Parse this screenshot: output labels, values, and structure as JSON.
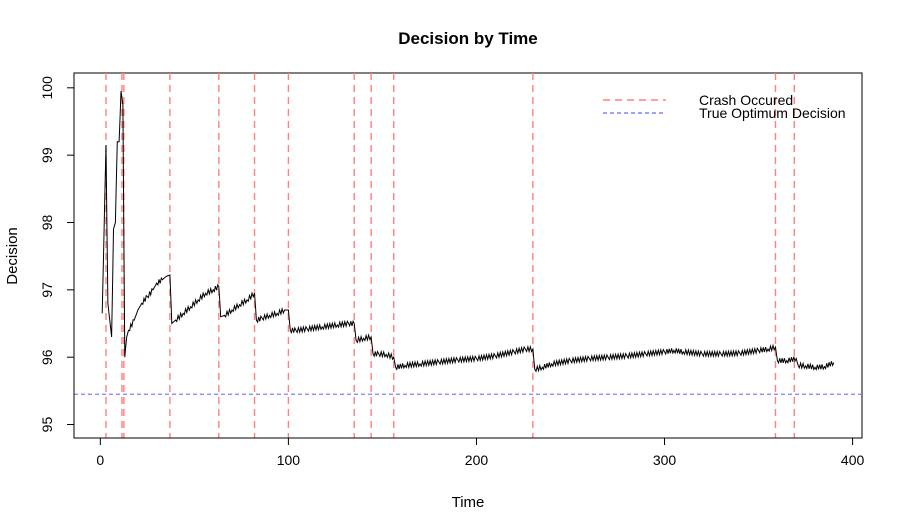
{
  "chart_data": {
    "type": "line",
    "title": "Decision by Time",
    "xlabel": "Time",
    "ylabel": "Decision",
    "xlim": [
      -14,
      405
    ],
    "ylim": [
      94.8,
      100.22
    ],
    "xticks": [
      "0",
      "100",
      "200",
      "300",
      "400"
    ],
    "yticks": [
      "95",
      "96",
      "97",
      "98",
      "99",
      "100"
    ],
    "grid": false,
    "legend_position": "top-right",
    "series": [
      {
        "name": "Decision",
        "color": "#000000",
        "x": [
          1,
          3,
          4,
          6,
          7,
          8,
          9,
          10,
          11,
          12,
          13,
          14,
          15,
          18,
          20,
          22,
          25,
          28,
          30,
          33,
          35,
          37,
          38,
          40,
          44,
          48,
          52,
          56,
          60,
          63,
          64,
          66,
          70,
          74,
          78,
          82,
          83,
          86,
          90,
          94,
          98,
          100,
          101,
          104,
          110,
          118,
          126,
          132,
          135,
          136,
          140,
          144,
          145,
          148,
          152,
          156,
          157,
          162,
          170,
          180,
          190,
          200,
          210,
          220,
          226,
          230,
          231,
          235,
          240,
          250,
          260,
          270,
          280,
          290,
          300,
          305,
          310,
          320,
          330,
          340,
          350,
          355,
          359,
          360,
          365,
          370,
          371,
          375,
          380,
          385,
          390
        ],
        "y": [
          96.65,
          99.15,
          96.8,
          96.3,
          97.9,
          98.0,
          99.2,
          99.2,
          99.95,
          99.75,
          96.0,
          96.3,
          96.4,
          96.55,
          96.7,
          96.8,
          96.9,
          97.0,
          97.1,
          97.15,
          97.2,
          97.22,
          96.5,
          96.55,
          96.65,
          96.75,
          96.85,
          96.95,
          97.0,
          97.05,
          96.6,
          96.62,
          96.7,
          96.78,
          96.85,
          96.95,
          96.55,
          96.58,
          96.62,
          96.65,
          96.7,
          96.7,
          96.4,
          96.4,
          96.42,
          96.45,
          96.48,
          96.5,
          96.5,
          96.25,
          96.28,
          96.3,
          96.05,
          96.05,
          96.04,
          96.0,
          95.85,
          95.88,
          95.9,
          95.93,
          95.96,
          95.98,
          96.02,
          96.08,
          96.12,
          96.12,
          95.82,
          95.85,
          95.9,
          95.95,
          95.98,
          96.0,
          96.02,
          96.05,
          96.08,
          96.1,
          96.08,
          96.05,
          96.05,
          96.06,
          96.1,
          96.12,
          96.15,
          95.95,
          95.95,
          95.98,
          95.88,
          95.87,
          95.85,
          95.86,
          95.92
        ]
      }
    ],
    "crash_lines": {
      "name": "Crash Occured",
      "color": "#ff8080",
      "style": "dashed",
      "x": [
        3,
        11.5,
        12.5,
        37,
        63,
        82,
        100,
        135,
        144,
        156,
        230,
        359,
        369
      ]
    },
    "optimum_line": {
      "name": "True Optimum Decision",
      "color": "#8080ff",
      "style": "dashed",
      "y": 95.45
    }
  }
}
